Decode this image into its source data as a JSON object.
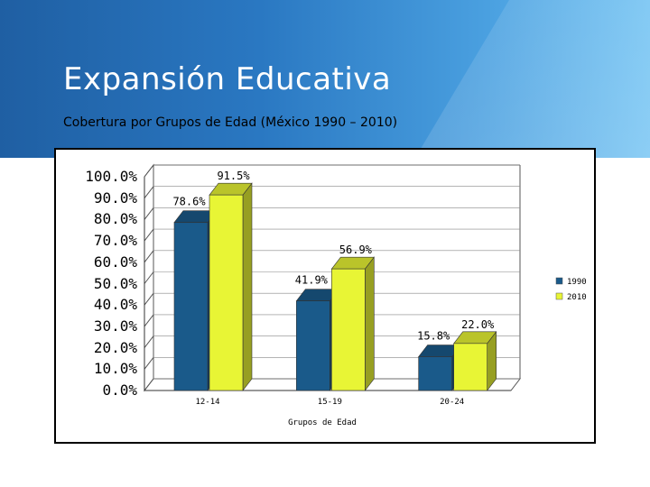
{
  "slide": {
    "title": "Expansión Educativa",
    "subtitle": "Cobertura por Grupos de Edad (México 1990 – 2010)"
  },
  "chart_data": {
    "type": "bar",
    "categories": [
      "12-14",
      "15-19",
      "20-24"
    ],
    "series": [
      {
        "name": "1990",
        "values": [
          78.6,
          41.9,
          15.8
        ],
        "color": "#1a5a8a"
      },
      {
        "name": "2010",
        "values": [
          91.5,
          56.9,
          22.0
        ],
        "color": "#e8f535"
      }
    ],
    "data_labels": [
      [
        "78.6%",
        "41.9%",
        "15.8%"
      ],
      [
        "91.5%",
        "56.9%",
        "22.0%"
      ]
    ],
    "xlabel": "Grupos de Edad",
    "ylabel": "",
    "ylim": [
      0,
      100
    ],
    "yticks": [
      "100.0%",
      "90.0%",
      "80.0%",
      "70.0%",
      "60.0%",
      "50.0%",
      "40.0%",
      "30.0%",
      "20.0%",
      "10.0%",
      "0.0%"
    ],
    "legend_position": "right",
    "style": "3d-bar"
  }
}
